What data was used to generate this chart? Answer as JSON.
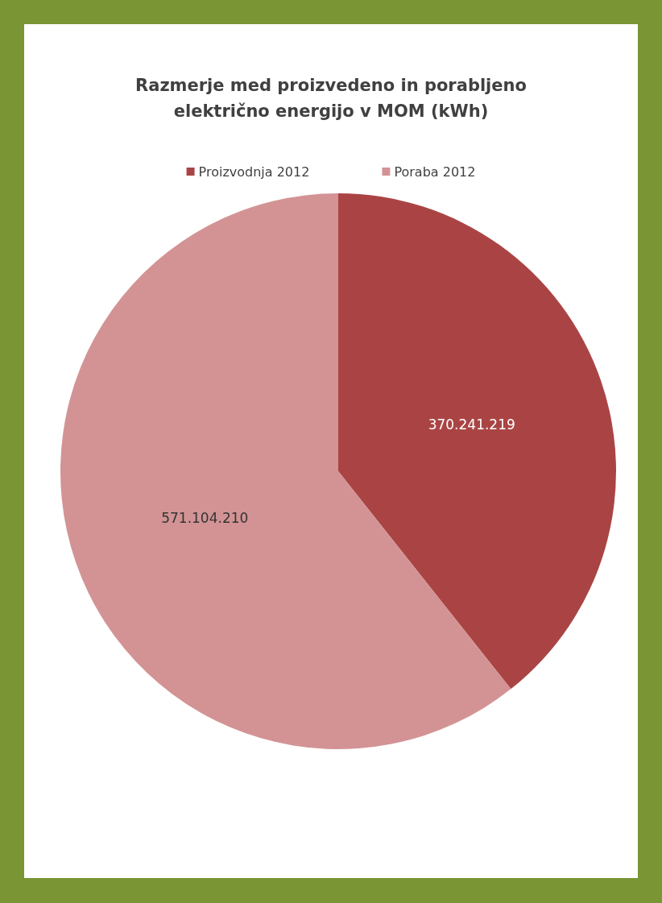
{
  "chart_data": {
    "type": "pie",
    "title": "Razmerje med proizvedeno in porabljeno\nelektrično energijo v MOM (kWh)",
    "categories": [
      "Proizvodnja 2012",
      "Poraba 2012"
    ],
    "values": [
      370241219,
      571104210
    ],
    "value_labels": [
      "370.241.219",
      "571.104.210"
    ],
    "colors": [
      "#aa4444",
      "#d39394"
    ],
    "legend": "top"
  }
}
